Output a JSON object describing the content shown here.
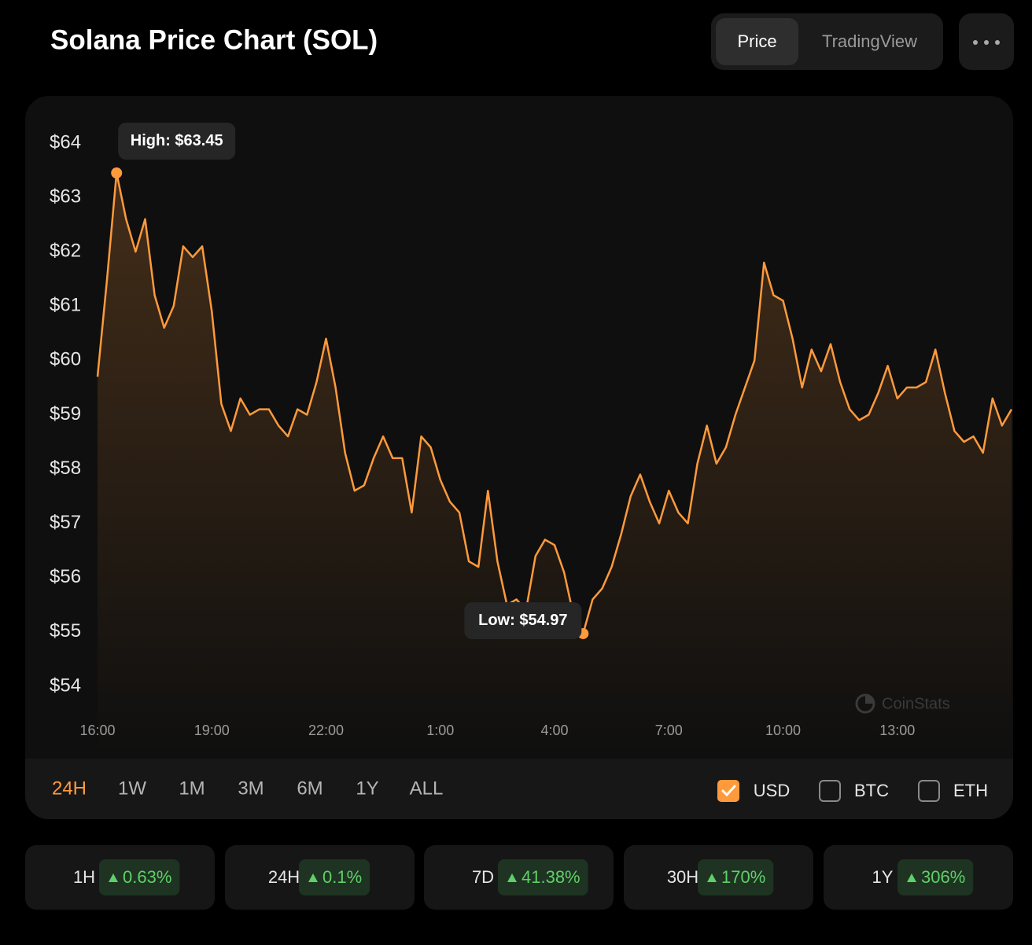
{
  "header": {
    "title": "Solana Price Chart (SOL)",
    "tabs": [
      {
        "label": "Price",
        "active": true
      },
      {
        "label": "TradingView",
        "active": false
      }
    ]
  },
  "chart_data": {
    "type": "line",
    "categories": [
      "16:00",
      null,
      null,
      null,
      null,
      null,
      null,
      null,
      null,
      null,
      null,
      null,
      "19:00",
      null,
      null,
      null,
      null,
      null,
      null,
      null,
      null,
      null,
      null,
      null,
      "22:00",
      null,
      null,
      null,
      null,
      null,
      null,
      null,
      null,
      null,
      null,
      null,
      "1:00",
      null,
      null,
      null,
      null,
      null,
      null,
      null,
      null,
      null,
      null,
      null,
      "4:00",
      null,
      null,
      null,
      null,
      null,
      null,
      null,
      null,
      null,
      null,
      null,
      "7:00",
      null,
      null,
      null,
      null,
      null,
      null,
      null,
      null,
      null,
      null,
      null,
      "10:00",
      null,
      null,
      null,
      null,
      null,
      null,
      null,
      null,
      null,
      null,
      null,
      "13:00",
      null,
      null,
      null,
      null,
      null,
      null,
      null,
      null,
      null,
      null,
      null,
      null
    ],
    "series": [
      {
        "name": "SOL",
        "color": "#ff9a3c",
        "values": [
          59.7,
          61.5,
          63.45,
          62.6,
          62.0,
          62.6,
          61.2,
          60.6,
          61.0,
          62.1,
          61.9,
          62.1,
          60.9,
          59.2,
          58.7,
          59.3,
          59.0,
          59.1,
          59.1,
          58.8,
          58.6,
          59.1,
          59.0,
          59.6,
          60.4,
          59.5,
          58.3,
          57.6,
          57.7,
          58.2,
          58.6,
          58.2,
          58.2,
          57.2,
          58.6,
          58.4,
          57.8,
          57.4,
          57.2,
          56.3,
          56.2,
          57.6,
          56.3,
          55.5,
          55.6,
          55.4,
          56.4,
          56.7,
          56.6,
          56.1,
          55.3,
          54.97,
          55.6,
          55.8,
          56.2,
          56.8,
          57.5,
          57.9,
          57.4,
          57.0,
          57.6,
          57.2,
          57.0,
          58.1,
          58.8,
          58.1,
          58.4,
          59.0,
          59.5,
          60.0,
          61.8,
          61.2,
          61.1,
          60.4,
          59.5,
          60.2,
          59.8,
          60.3,
          59.6,
          59.1,
          58.9,
          59.0,
          59.4,
          59.9,
          59.3,
          59.5,
          59.5,
          59.6,
          60.2,
          59.4,
          58.7,
          58.5,
          58.6,
          58.3,
          59.3,
          58.8,
          59.1
        ]
      }
    ],
    "ylim": [
      54,
      64
    ],
    "yticks": [
      {
        "value": 54,
        "label": "$54"
      },
      {
        "value": 55,
        "label": "$55"
      },
      {
        "value": 56,
        "label": "$56"
      },
      {
        "value": 57,
        "label": "$57"
      },
      {
        "value": 58,
        "label": "$58"
      },
      {
        "value": 59,
        "label": "$59"
      },
      {
        "value": 60,
        "label": "$60"
      },
      {
        "value": 61,
        "label": "$61"
      },
      {
        "value": 62,
        "label": "$62"
      },
      {
        "value": 63,
        "label": "$63"
      },
      {
        "value": 64,
        "label": "$64"
      }
    ],
    "grid": false,
    "annotations": [
      {
        "text": "High: $63.45",
        "index": 2
      },
      {
        "text": "Low: $54.97",
        "index": 51
      }
    ],
    "watermark": "CoinStats"
  },
  "periods": [
    {
      "label": "24H",
      "selected": true
    },
    {
      "label": "1W",
      "selected": false
    },
    {
      "label": "1M",
      "selected": false
    },
    {
      "label": "3M",
      "selected": false
    },
    {
      "label": "6M",
      "selected": false
    },
    {
      "label": "1Y",
      "selected": false
    },
    {
      "label": "ALL",
      "selected": false
    }
  ],
  "currencies": [
    {
      "label": "USD",
      "checked": true
    },
    {
      "label": "BTC",
      "checked": false
    },
    {
      "label": "ETH",
      "checked": false
    }
  ],
  "stats": [
    {
      "period": "1H",
      "change": "0.63%"
    },
    {
      "period": "24H",
      "change": "0.1%"
    },
    {
      "period": "7D",
      "change": "41.38%"
    },
    {
      "period": "30H",
      "change": "170%"
    },
    {
      "period": "1Y",
      "change": "306%"
    }
  ]
}
